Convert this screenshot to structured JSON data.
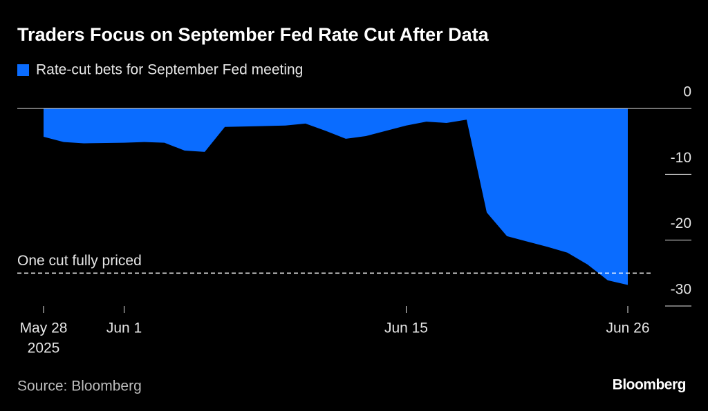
{
  "chart_data": {
    "type": "area",
    "title": "Traders Focus on September Fed Rate Cut After Data",
    "source": "Source: Bloomberg",
    "brand": "Bloomberg",
    "x": [
      "2025-05-28",
      "2025-05-29",
      "2025-05-30",
      "2025-06-01",
      "2025-06-02",
      "2025-06-03",
      "2025-06-04",
      "2025-06-05",
      "2025-06-06",
      "2025-06-09",
      "2025-06-10",
      "2025-06-11",
      "2025-06-12",
      "2025-06-13",
      "2025-06-14",
      "2025-06-15",
      "2025-06-16",
      "2025-06-17",
      "2025-06-18",
      "2025-06-19",
      "2025-06-20",
      "2025-06-21",
      "2025-06-22",
      "2025-06-23",
      "2025-06-24",
      "2025-06-25",
      "2025-06-26"
    ],
    "series": [
      {
        "name": "Rate-cut bets for September Fed meeting",
        "color": "#0a6cff",
        "values": [
          -4.3,
          -5.1,
          -5.3,
          -5.2,
          -5.1,
          -5.2,
          -6.4,
          -6.6,
          -2.8,
          -2.6,
          -2.3,
          -3.4,
          -4.6,
          -4.2,
          -3.4,
          -2.6,
          -2.0,
          -2.2,
          -1.7,
          -15.8,
          -19.4,
          -20.2,
          -21.0,
          -21.9,
          -23.7,
          -26.1,
          -26.8
        ]
      }
    ],
    "xlim": [
      "2025-05-28",
      "2025-06-26"
    ],
    "xticks": [
      {
        "value": "2025-05-28",
        "label": "May 28"
      },
      {
        "value": "2025-06-01",
        "label": "Jun 1"
      },
      {
        "value": "2025-06-15",
        "label": "Jun 15"
      },
      {
        "value": "2025-06-26",
        "label": "Jun 26"
      }
    ],
    "x_year_label": "2025",
    "ylim": [
      -30,
      0
    ],
    "yticks": [
      0,
      -10,
      -20,
      -30
    ],
    "annotations": [
      {
        "text": "One cut fully priced",
        "y": -25
      }
    ]
  }
}
